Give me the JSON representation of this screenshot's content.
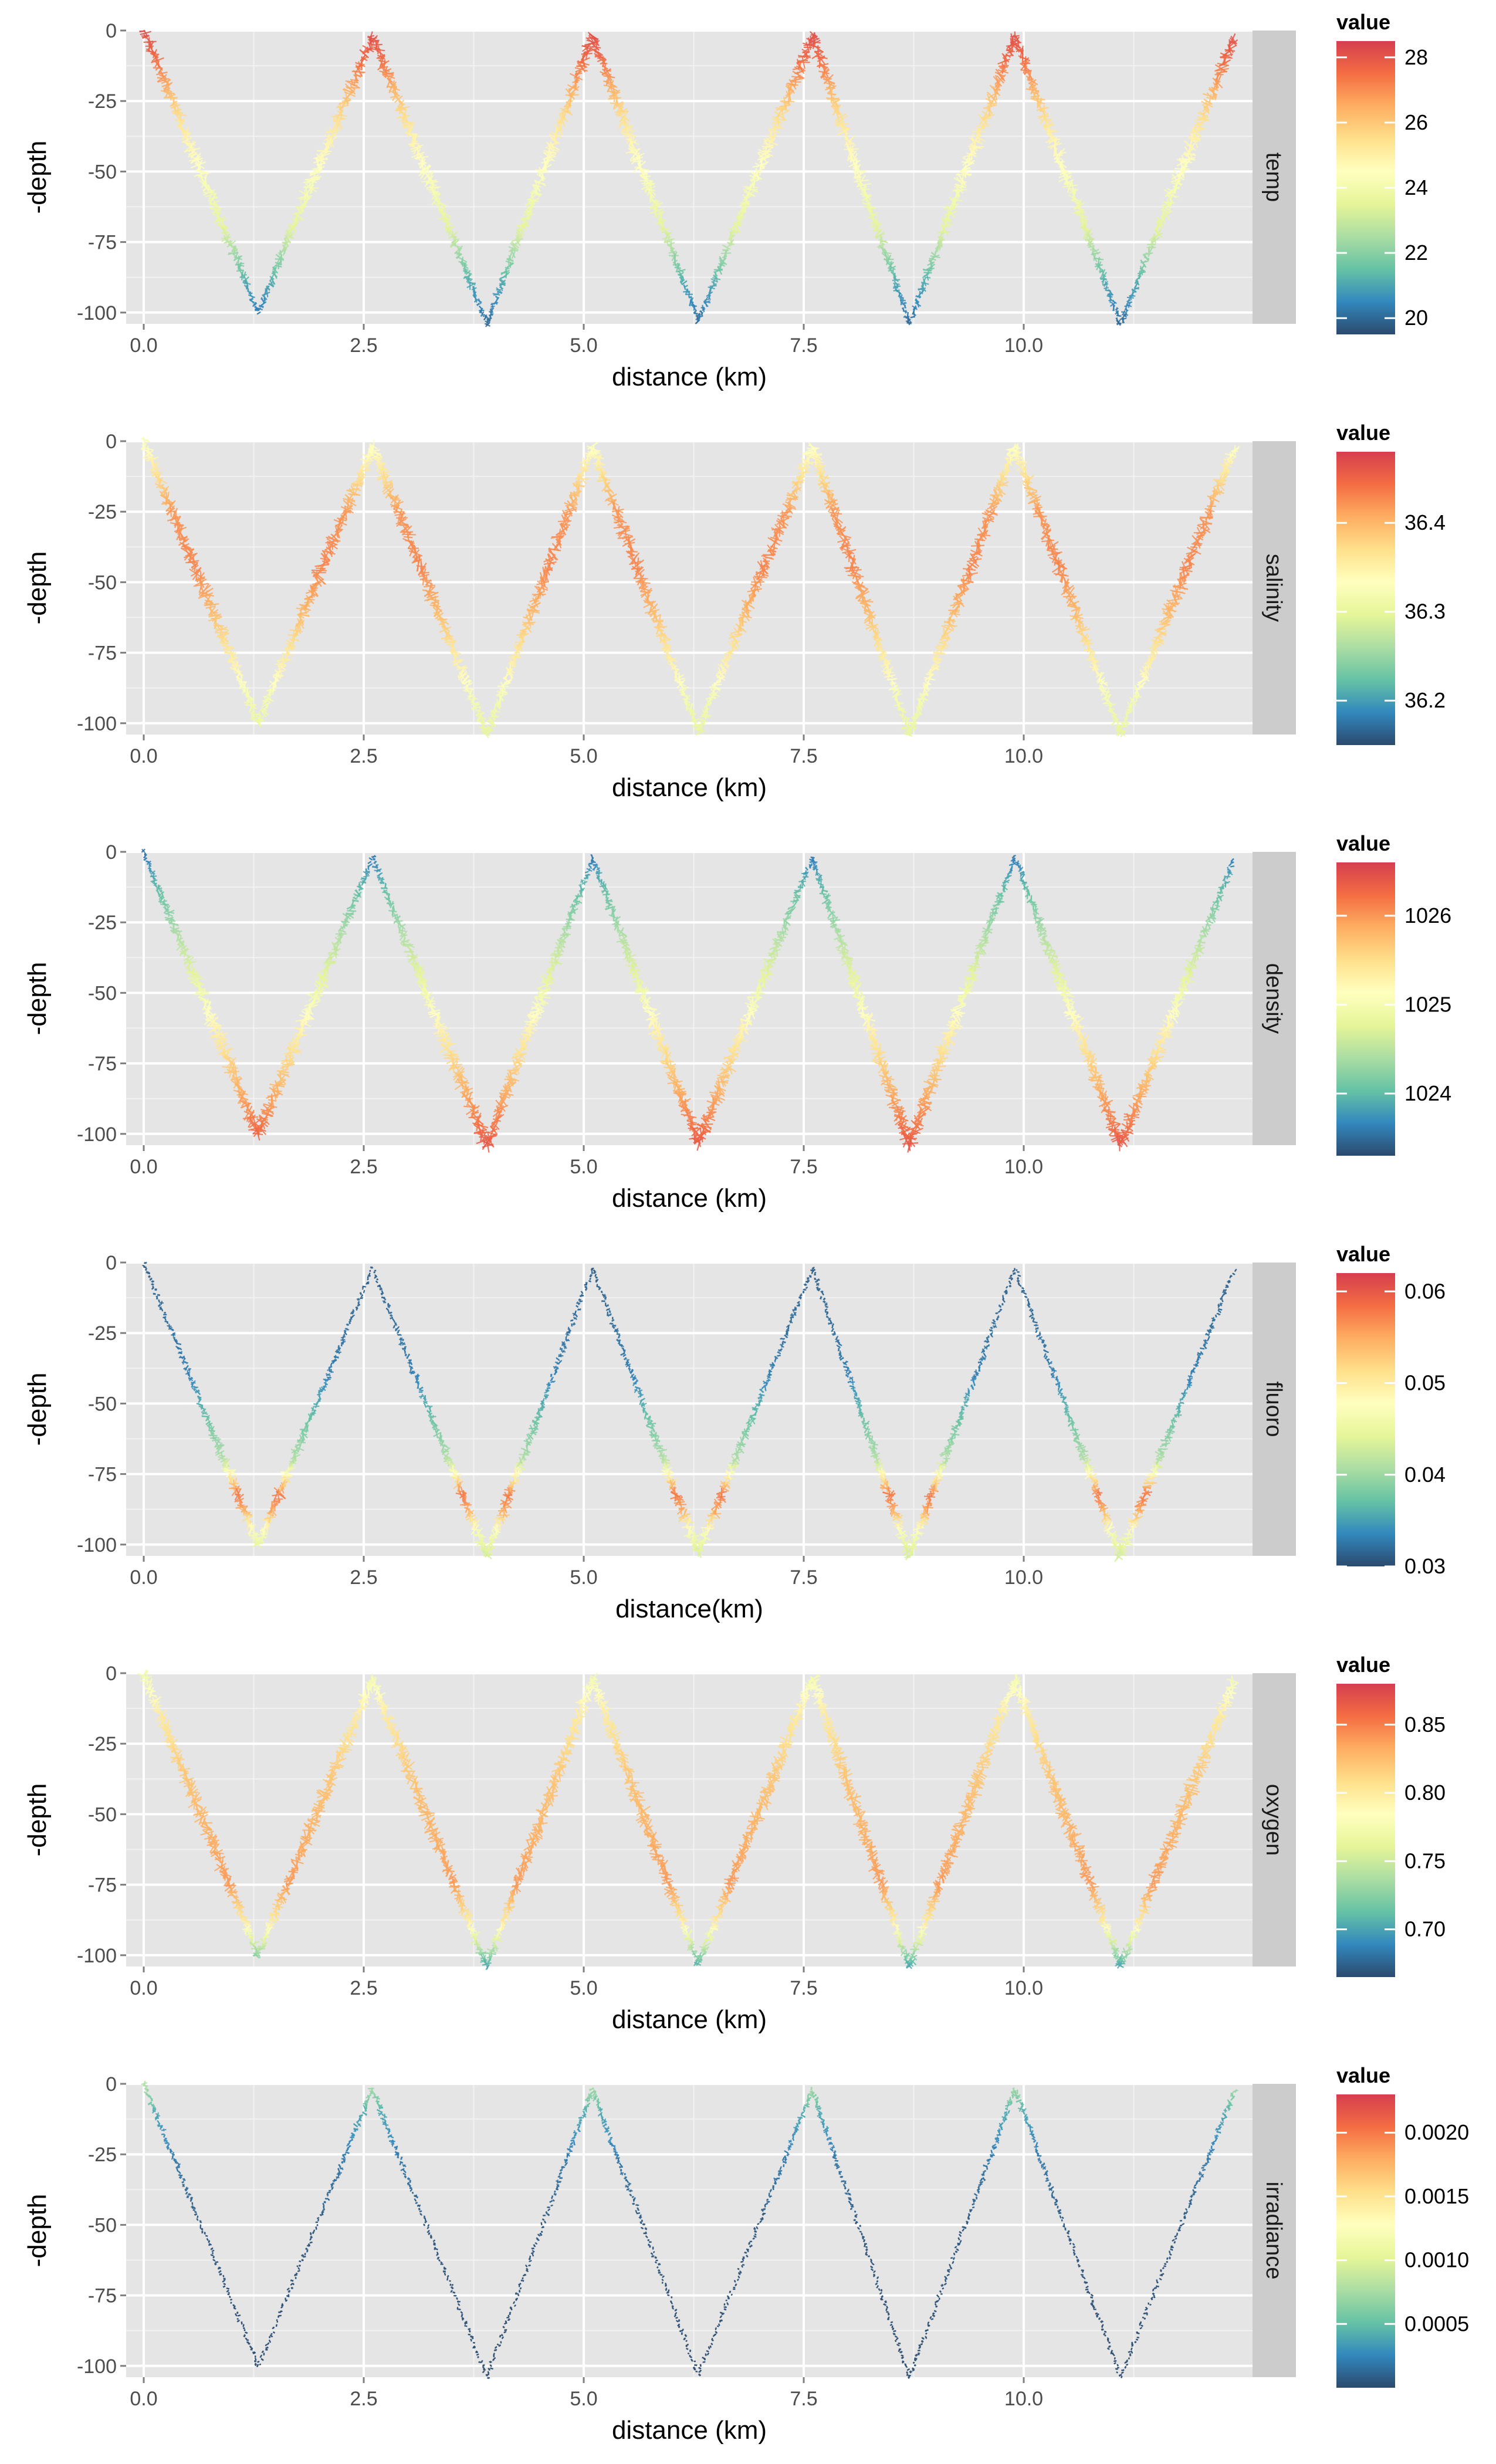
{
  "palette": [
    "#2c4a6e",
    "#3288bd",
    "#66c2a5",
    "#abdda4",
    "#e6f598",
    "#ffffbf",
    "#fee08b",
    "#fdae61",
    "#f46d43",
    "#d53e4f"
  ],
  "chart_data": [
    {
      "type": "scatter",
      "variable": "temp",
      "xlabel": "distance (km)",
      "ylabel": "-depth",
      "xlim": [
        -0.2,
        12.6
      ],
      "ylim": [
        -104,
        0
      ],
      "xticks": [
        0.0,
        2.5,
        5.0,
        7.5,
        10.0
      ],
      "xtick_labels": [
        "0.0",
        "2.5",
        "5.0",
        "7.5",
        "10.0"
      ],
      "yticks": [
        0,
        -25,
        -50,
        -75,
        -100
      ],
      "ytick_labels": [
        "0",
        "-25",
        "-50",
        "-75",
        "-100"
      ],
      "legend_title": "value",
      "legend_range": [
        19.5,
        28.5
      ],
      "legend_ticks": [
        28,
        26,
        24,
        22,
        20
      ],
      "legend_tick_labels": [
        "28",
        "26",
        "24",
        "22",
        "20"
      ],
      "turning_points": [
        [
          0.0,
          0
        ],
        [
          1.3,
          -100
        ],
        [
          2.6,
          -2
        ],
        [
          3.9,
          -104
        ],
        [
          5.1,
          -2
        ],
        [
          6.3,
          -103
        ],
        [
          7.6,
          -2
        ],
        [
          8.7,
          -104
        ],
        [
          9.9,
          -2
        ],
        [
          11.1,
          -104
        ],
        [
          12.4,
          -2
        ]
      ],
      "profile": [
        [
          0,
          28.2
        ],
        [
          10,
          27.6
        ],
        [
          25,
          26
        ],
        [
          40,
          24.8
        ],
        [
          55,
          24.2
        ],
        [
          70,
          23.5
        ],
        [
          80,
          22.2
        ],
        [
          90,
          21
        ],
        [
          104,
          20
        ]
      ],
      "dark_low": false,
      "spread_by_depth": [
        [
          0,
          8
        ],
        [
          50,
          10
        ],
        [
          100,
          4
        ]
      ]
    },
    {
      "type": "scatter",
      "variable": "salinity",
      "xlabel": "distance (km)",
      "ylabel": "-depth",
      "xlim": [
        -0.2,
        12.6
      ],
      "ylim": [
        -104,
        0
      ],
      "xticks": [
        0.0,
        2.5,
        5.0,
        7.5,
        10.0
      ],
      "xtick_labels": [
        "0.0",
        "2.5",
        "5.0",
        "7.5",
        "10.0"
      ],
      "yticks": [
        0,
        -25,
        -50,
        -75,
        -100
      ],
      "ytick_labels": [
        "0",
        "-25",
        "-50",
        "-75",
        "-100"
      ],
      "legend_title": "value",
      "legend_range": [
        36.15,
        36.48
      ],
      "legend_ticks": [
        36.4,
        36.3,
        36.2
      ],
      "legend_tick_labels": [
        "36.4",
        "36.3",
        "36.2"
      ],
      "turning_points": [
        [
          0.0,
          0
        ],
        [
          1.3,
          -100
        ],
        [
          2.6,
          -2
        ],
        [
          3.9,
          -104
        ],
        [
          5.1,
          -2
        ],
        [
          6.3,
          -103
        ],
        [
          7.6,
          -2
        ],
        [
          8.7,
          -104
        ],
        [
          9.9,
          -2
        ],
        [
          11.1,
          -104
        ],
        [
          12.4,
          -2
        ]
      ],
      "profile": [
        [
          0,
          36.32
        ],
        [
          10,
          36.36
        ],
        [
          25,
          36.42
        ],
        [
          45,
          36.43
        ],
        [
          60,
          36.4
        ],
        [
          75,
          36.36
        ],
        [
          90,
          36.32
        ],
        [
          104,
          36.3
        ]
      ],
      "dark_low": false,
      "spread_by_depth": [
        [
          0,
          8
        ],
        [
          50,
          10
        ],
        [
          100,
          6
        ]
      ]
    },
    {
      "type": "scatter",
      "variable": "density",
      "xlabel": "distance (km)",
      "ylabel": "-depth",
      "xlim": [
        -0.2,
        12.6
      ],
      "ylim": [
        -104,
        0
      ],
      "xticks": [
        0.0,
        2.5,
        5.0,
        7.5,
        10.0
      ],
      "xtick_labels": [
        "0.0",
        "2.5",
        "5.0",
        "7.5",
        "10.0"
      ],
      "yticks": [
        0,
        -25,
        -50,
        -75,
        -100
      ],
      "ytick_labels": [
        "0",
        "-25",
        "-50",
        "-75",
        "-100"
      ],
      "legend_title": "value",
      "legend_range": [
        1023.3,
        1026.6
      ],
      "legend_ticks": [
        1026,
        1025,
        1024
      ],
      "legend_tick_labels": [
        "1026",
        "1025",
        "1024"
      ],
      "turning_points": [
        [
          0.0,
          0
        ],
        [
          1.3,
          -100
        ],
        [
          2.6,
          -2
        ],
        [
          3.9,
          -104
        ],
        [
          5.1,
          -2
        ],
        [
          6.3,
          -103
        ],
        [
          7.6,
          -2
        ],
        [
          8.7,
          -104
        ],
        [
          9.9,
          -2
        ],
        [
          11.1,
          -104
        ],
        [
          12.4,
          -2
        ]
      ],
      "profile": [
        [
          0,
          1023.5
        ],
        [
          10,
          1023.9
        ],
        [
          25,
          1024.3
        ],
        [
          45,
          1024.8
        ],
        [
          60,
          1025.2
        ],
        [
          75,
          1025.6
        ],
        [
          90,
          1026
        ],
        [
          104,
          1026.4
        ]
      ],
      "dark_low": false,
      "spread_by_depth": [
        [
          0,
          3
        ],
        [
          50,
          10
        ],
        [
          100,
          10
        ]
      ]
    },
    {
      "type": "scatter",
      "variable": "fluoro",
      "xlabel": "distance(km)",
      "ylabel": "-depth",
      "xlim": [
        -0.2,
        12.6
      ],
      "ylim": [
        -104,
        0
      ],
      "xticks": [
        0.0,
        2.5,
        5.0,
        7.5,
        10.0
      ],
      "xtick_labels": [
        "0.0",
        "2.5",
        "5.0",
        "7.5",
        "10.0"
      ],
      "yticks": [
        0,
        -25,
        -50,
        -75,
        -100
      ],
      "ytick_labels": [
        "0",
        "-25",
        "-50",
        "-75",
        "-100"
      ],
      "legend_title": "value",
      "legend_range": [
        0.03,
        0.062
      ],
      "legend_ticks": [
        0.06,
        0.05,
        0.04,
        0.03
      ],
      "legend_tick_labels": [
        "0.06",
        "0.05",
        "0.04",
        "0.03"
      ],
      "turning_points": [
        [
          0.0,
          0
        ],
        [
          1.3,
          -100
        ],
        [
          2.6,
          -2
        ],
        [
          3.9,
          -104
        ],
        [
          5.1,
          -2
        ],
        [
          6.3,
          -103
        ],
        [
          7.6,
          -2
        ],
        [
          8.7,
          -104
        ],
        [
          9.9,
          -2
        ],
        [
          11.1,
          -104
        ],
        [
          12.4,
          -2
        ]
      ],
      "profile": [
        [
          0,
          0.031
        ],
        [
          40,
          0.033
        ],
        [
          55,
          0.037
        ],
        [
          70,
          0.041
        ],
        [
          82,
          0.058
        ],
        [
          88,
          0.055
        ],
        [
          95,
          0.047
        ],
        [
          104,
          0.043
        ]
      ],
      "dark_low": true,
      "spread_by_depth": [
        [
          0,
          2
        ],
        [
          50,
          4
        ],
        [
          75,
          8
        ],
        [
          100,
          8
        ]
      ]
    },
    {
      "type": "scatter",
      "variable": "oxygen",
      "xlabel": "distance (km)",
      "ylabel": "-depth",
      "xlim": [
        -0.2,
        12.6
      ],
      "ylim": [
        -104,
        0
      ],
      "xticks": [
        0.0,
        2.5,
        5.0,
        7.5,
        10.0
      ],
      "xtick_labels": [
        "0.0",
        "2.5",
        "5.0",
        "7.5",
        "10.0"
      ],
      "yticks": [
        0,
        -25,
        -50,
        -75,
        -100
      ],
      "ytick_labels": [
        "0",
        "-25",
        "-50",
        "-75",
        "-100"
      ],
      "legend_title": "value",
      "legend_range": [
        0.665,
        0.88
      ],
      "legend_ticks": [
        0.85,
        0.8,
        0.75,
        0.7
      ],
      "legend_tick_labels": [
        "0.85",
        "0.80",
        "0.75",
        "0.70"
      ],
      "turning_points": [
        [
          0.0,
          0
        ],
        [
          1.3,
          -100
        ],
        [
          2.6,
          -2
        ],
        [
          3.9,
          -104
        ],
        [
          5.1,
          -2
        ],
        [
          6.3,
          -103
        ],
        [
          7.6,
          -2
        ],
        [
          8.7,
          -104
        ],
        [
          9.9,
          -2
        ],
        [
          11.1,
          -104
        ],
        [
          12.4,
          -2
        ]
      ],
      "profile": [
        [
          0,
          0.77
        ],
        [
          15,
          0.8
        ],
        [
          35,
          0.82
        ],
        [
          55,
          0.83
        ],
        [
          75,
          0.84
        ],
        [
          88,
          0.8
        ],
        [
          96,
          0.75
        ],
        [
          104,
          0.7
        ]
      ],
      "dark_low": false,
      "spread_by_depth": [
        [
          0,
          8
        ],
        [
          50,
          10
        ],
        [
          100,
          6
        ]
      ]
    },
    {
      "type": "scatter",
      "variable": "irradiance",
      "xlabel": "distance (km)",
      "ylabel": "-depth",
      "xlim": [
        -0.2,
        12.6
      ],
      "ylim": [
        -104,
        0
      ],
      "xticks": [
        0.0,
        2.5,
        5.0,
        7.5,
        10.0
      ],
      "xtick_labels": [
        "0.0",
        "2.5",
        "5.0",
        "7.5",
        "10.0"
      ],
      "yticks": [
        0,
        -25,
        -50,
        -75,
        -100
      ],
      "ytick_labels": [
        "0",
        "-25",
        "-50",
        "-75",
        "-100"
      ],
      "legend_title": "value",
      "legend_range": [
        0.0,
        0.0023
      ],
      "legend_ticks": [
        0.002,
        0.0015,
        0.001,
        0.0005
      ],
      "legend_tick_labels": [
        "0.0020",
        "0.0015",
        "0.0010",
        "0.0005"
      ],
      "turning_points": [
        [
          0.0,
          0
        ],
        [
          1.3,
          -100
        ],
        [
          2.6,
          -2
        ],
        [
          3.9,
          -104
        ],
        [
          5.1,
          -2
        ],
        [
          6.3,
          -103
        ],
        [
          7.6,
          -2
        ],
        [
          8.7,
          -104
        ],
        [
          9.9,
          -2
        ],
        [
          11.1,
          -104
        ],
        [
          12.4,
          -2
        ]
      ],
      "profile": [
        [
          0,
          0.0008
        ],
        [
          10,
          0.0004
        ],
        [
          25,
          0.0002
        ],
        [
          50,
          5e-05
        ],
        [
          104,
          0.0
        ]
      ],
      "dark_low": true,
      "spread_by_depth": [
        [
          0,
          4
        ],
        [
          50,
          2
        ],
        [
          100,
          2
        ]
      ]
    }
  ]
}
